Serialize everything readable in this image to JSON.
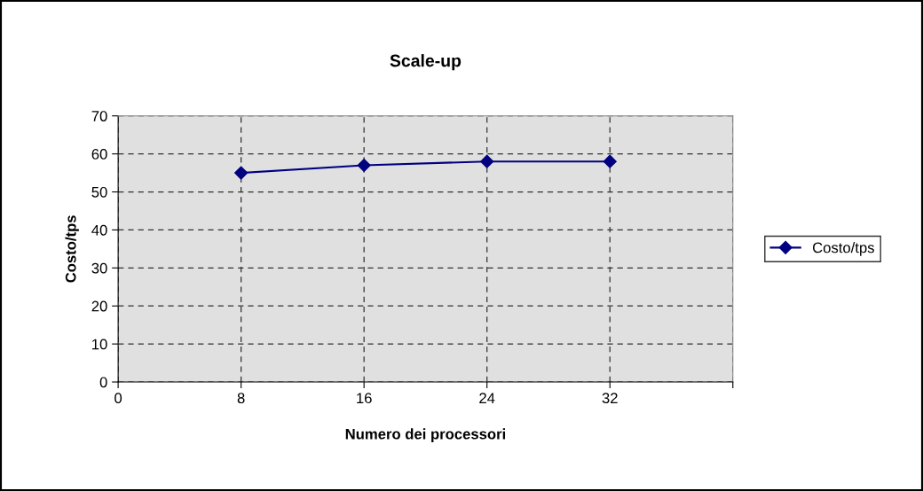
{
  "chart_data": {
    "type": "line",
    "title": "Scale-up",
    "xlabel": "Numero dei processori",
    "ylabel": "Costo/tps",
    "x": [
      8,
      16,
      24,
      32
    ],
    "series": [
      {
        "name": "Costo/tps",
        "color": "#000080",
        "values": [
          55,
          57,
          58,
          58
        ]
      }
    ],
    "xlim": [
      0,
      40
    ],
    "xticks": [
      0,
      8,
      16,
      24,
      32,
      {
        "value": 40,
        "label": null
      }
    ],
    "ylim": [
      0,
      70
    ],
    "yticks": [
      0,
      10,
      20,
      30,
      40,
      50,
      60,
      70
    ],
    "grid": true,
    "legend": "right",
    "marker": "diamond",
    "line_style": "solid"
  }
}
